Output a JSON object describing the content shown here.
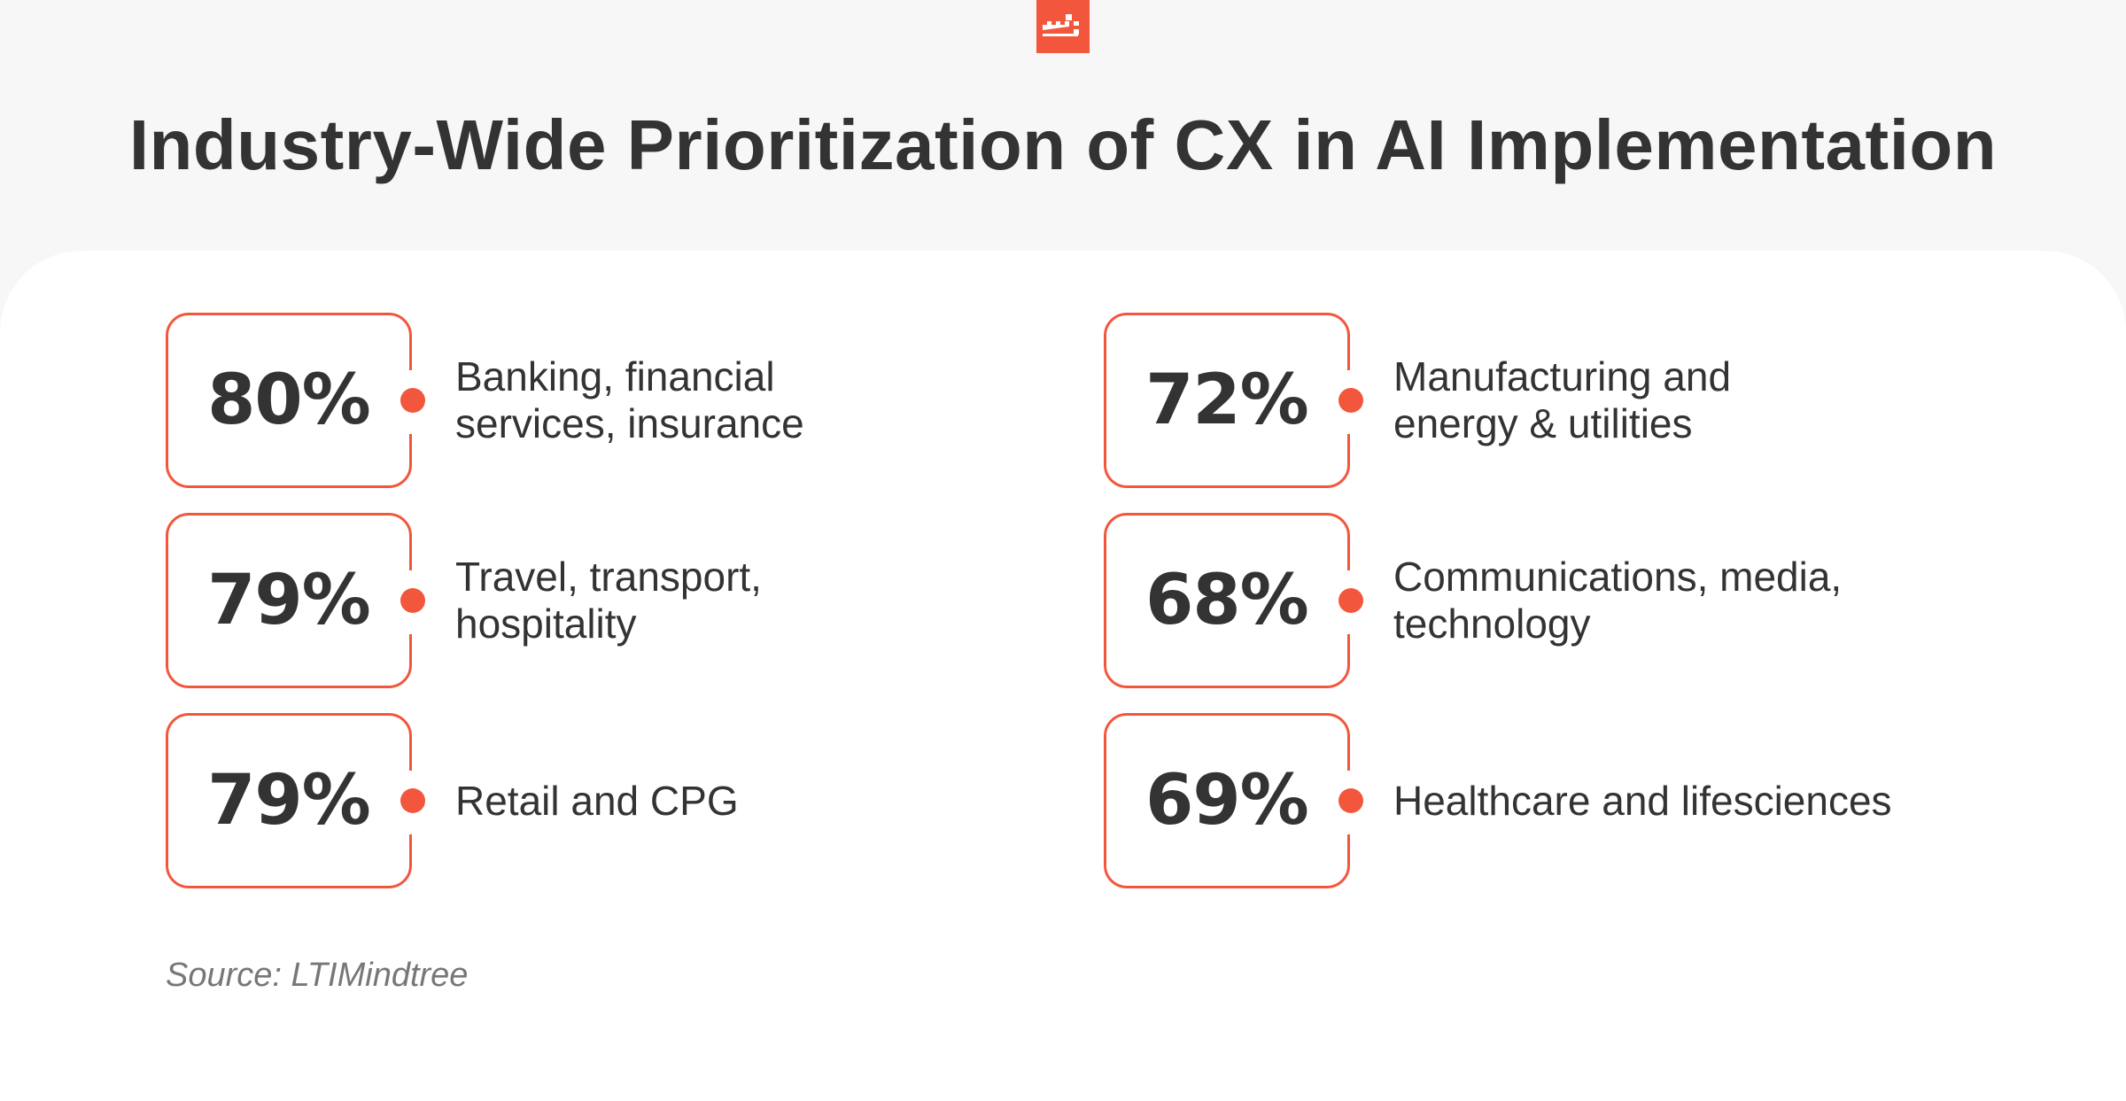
{
  "title": "Industry-Wide Prioritization of CX in AI Implementation",
  "logo_icon": "brand-logo-icon",
  "accent_color": "#f2573d",
  "items": [
    {
      "value": "80%",
      "label": "Banking, financial services, insurance"
    },
    {
      "value": "79%",
      "label": "Travel, transport, hospitality"
    },
    {
      "value": "79%",
      "label": "Retail and CPG"
    },
    {
      "value": "72%",
      "label": "Manufacturing and energy & utilities"
    },
    {
      "value": "68%",
      "label": "Communications, media, technology"
    },
    {
      "value": "69%",
      "label": "Healthcare and lifesciences"
    }
  ],
  "source": "Source: LTIMindtree"
}
